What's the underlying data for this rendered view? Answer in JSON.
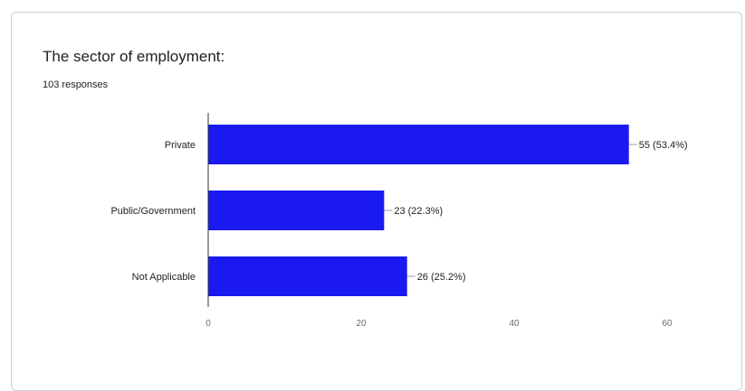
{
  "form": {
    "question": "The sector of employment:",
    "responses": "103 responses"
  },
  "colors": {
    "bar": "#1a1af0",
    "axis": "#333333",
    "leader": "#9e9e9e"
  },
  "chart_data": {
    "type": "bar",
    "orientation": "horizontal",
    "title": "The sector of employment:",
    "subtitle": "103 responses",
    "categories": [
      "Private",
      "Public/Government",
      "Not Applicable"
    ],
    "values": [
      55,
      23,
      26
    ],
    "data_labels": [
      "55 (53.4%)",
      "23 (22.3%)",
      "26 (25.2%)"
    ],
    "xlim": [
      0,
      60
    ],
    "xticks": [
      0,
      20,
      40,
      60
    ],
    "grid": false,
    "legend": "none"
  }
}
